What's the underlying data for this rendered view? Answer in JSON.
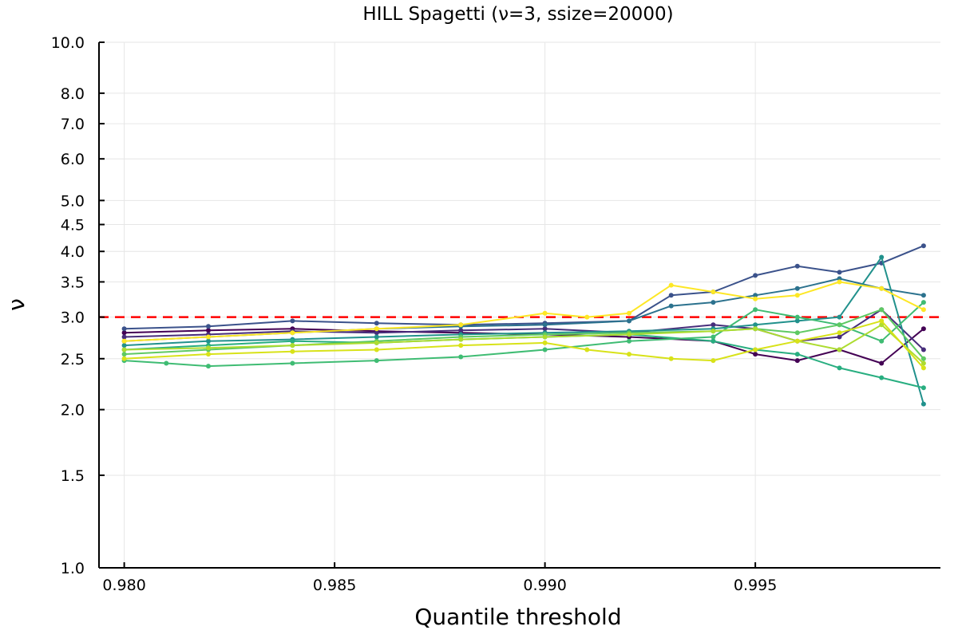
{
  "chart_data": {
    "type": "line",
    "title": "HILL Spagetti (ν=3, ssize=20000)",
    "xlabel": "Quantile threshold",
    "ylabel": "ν",
    "xlim": [
      0.9794,
      0.9994
    ],
    "ylim": [
      1.0,
      10.0
    ],
    "y_scale": "log",
    "grid": true,
    "legend": "none",
    "x_ticks": [
      {
        "value": 0.98,
        "label": "0.980"
      },
      {
        "value": 0.985,
        "label": "0.985"
      },
      {
        "value": 0.99,
        "label": "0.990"
      },
      {
        "value": 0.995,
        "label": "0.995"
      }
    ],
    "y_ticks": [
      {
        "value": 1.0,
        "label": "1.0"
      },
      {
        "value": 1.5,
        "label": "1.5"
      },
      {
        "value": 2.0,
        "label": "2.0"
      },
      {
        "value": 2.5,
        "label": "2.5"
      },
      {
        "value": 3.0,
        "label": "3.0"
      },
      {
        "value": 3.5,
        "label": "3.5"
      },
      {
        "value": 4.0,
        "label": "4.0"
      },
      {
        "value": 4.5,
        "label": "4.5"
      },
      {
        "value": 5.0,
        "label": "5.0"
      },
      {
        "value": 6.0,
        "label": "6.0"
      },
      {
        "value": 7.0,
        "label": "7.0"
      },
      {
        "value": 8.0,
        "label": "8.0"
      },
      {
        "value": 10.0,
        "label": "10.0"
      }
    ],
    "reference_line": {
      "y": 3.0,
      "color": "#ff0000",
      "style": "dashed"
    },
    "series": [
      {
        "color": "#440154",
        "x": [
          0.98,
          0.982,
          0.984,
          0.986,
          0.988,
          0.99,
          0.992,
          0.994,
          0.995,
          0.996,
          0.997,
          0.998,
          0.999
        ],
        "y": [
          2.8,
          2.83,
          2.85,
          2.82,
          2.8,
          2.78,
          2.75,
          2.7,
          2.55,
          2.48,
          2.6,
          2.45,
          2.85
        ]
      },
      {
        "color": "#472d7b",
        "x": [
          0.98,
          0.982,
          0.984,
          0.986,
          0.988,
          0.99,
          0.992,
          0.994,
          0.995,
          0.996,
          0.997,
          0.998,
          0.999
        ],
        "y": [
          2.75,
          2.78,
          2.82,
          2.8,
          2.83,
          2.85,
          2.8,
          2.9,
          2.85,
          2.7,
          2.75,
          3.1,
          2.6
        ]
      },
      {
        "color": "#3b528b",
        "x": [
          0.98,
          0.982,
          0.984,
          0.986,
          0.988,
          0.99,
          0.992,
          0.993,
          0.994,
          0.995,
          0.996,
          0.997,
          0.998,
          0.999
        ],
        "y": [
          2.85,
          2.88,
          2.95,
          2.92,
          2.9,
          2.92,
          2.95,
          3.3,
          3.35,
          3.6,
          3.75,
          3.65,
          3.8,
          4.1
        ]
      },
      {
        "color": "#2c728e",
        "x": [
          0.98,
          0.982,
          0.984,
          0.986,
          0.988,
          0.99,
          0.992,
          0.993,
          0.994,
          0.995,
          0.996,
          0.997,
          0.998,
          0.999
        ],
        "y": [
          2.7,
          2.75,
          2.8,
          2.85,
          2.88,
          2.9,
          2.95,
          3.15,
          3.2,
          3.3,
          3.4,
          3.55,
          3.4,
          3.3
        ]
      },
      {
        "color": "#21918c",
        "x": [
          0.98,
          0.982,
          0.984,
          0.986,
          0.988,
          0.99,
          0.992,
          0.994,
          0.995,
          0.996,
          0.997,
          0.998,
          0.999
        ],
        "y": [
          2.65,
          2.7,
          2.72,
          2.75,
          2.78,
          2.8,
          2.82,
          2.85,
          2.9,
          2.95,
          3.0,
          3.9,
          2.05
        ]
      },
      {
        "color": "#28ae80",
        "x": [
          0.98,
          0.982,
          0.984,
          0.986,
          0.988,
          0.99,
          0.992,
          0.994,
          0.995,
          0.996,
          0.997,
          0.998,
          0.999
        ],
        "y": [
          2.6,
          2.65,
          2.7,
          2.68,
          2.72,
          2.75,
          2.78,
          2.7,
          2.6,
          2.55,
          2.4,
          2.3,
          2.2
        ]
      },
      {
        "color": "#3fbc73",
        "x": [
          0.98,
          0.981,
          0.982,
          0.984,
          0.986,
          0.988,
          0.99,
          0.992,
          0.994,
          0.995,
          0.996,
          0.997,
          0.998,
          0.999
        ],
        "y": [
          2.48,
          2.45,
          2.42,
          2.45,
          2.48,
          2.52,
          2.6,
          2.7,
          2.75,
          3.1,
          3.0,
          2.9,
          2.7,
          3.2
        ]
      },
      {
        "color": "#5ec962",
        "x": [
          0.98,
          0.982,
          0.984,
          0.986,
          0.988,
          0.99,
          0.992,
          0.994,
          0.995,
          0.996,
          0.997,
          0.998,
          0.999
        ],
        "y": [
          2.55,
          2.6,
          2.65,
          2.7,
          2.75,
          2.78,
          2.8,
          2.82,
          2.85,
          2.8,
          2.9,
          3.1,
          2.5
        ]
      },
      {
        "color": "#addc30",
        "x": [
          0.98,
          0.982,
          0.984,
          0.986,
          0.988,
          0.99,
          0.992,
          0.994,
          0.995,
          0.996,
          0.997,
          0.998,
          0.999
        ],
        "y": [
          2.6,
          2.62,
          2.65,
          2.68,
          2.72,
          2.75,
          2.78,
          2.82,
          2.85,
          2.7,
          2.6,
          2.9,
          2.45
        ]
      },
      {
        "color": "#d8e219",
        "x": [
          0.98,
          0.982,
          0.984,
          0.986,
          0.988,
          0.99,
          0.991,
          0.992,
          0.993,
          0.994,
          0.995,
          0.996,
          0.997,
          0.998,
          0.999
        ],
        "y": [
          2.5,
          2.55,
          2.58,
          2.6,
          2.65,
          2.68,
          2.6,
          2.55,
          2.5,
          2.48,
          2.6,
          2.7,
          2.8,
          2.95,
          2.4
        ]
      },
      {
        "color": "#fde725",
        "x": [
          0.98,
          0.982,
          0.984,
          0.986,
          0.988,
          0.99,
          0.991,
          0.992,
          0.993,
          0.994,
          0.995,
          0.996,
          0.997,
          0.998,
          0.999
        ],
        "y": [
          2.7,
          2.75,
          2.8,
          2.85,
          2.9,
          3.05,
          3.0,
          3.05,
          3.45,
          3.35,
          3.25,
          3.3,
          3.5,
          3.4,
          3.1
        ]
      }
    ]
  }
}
